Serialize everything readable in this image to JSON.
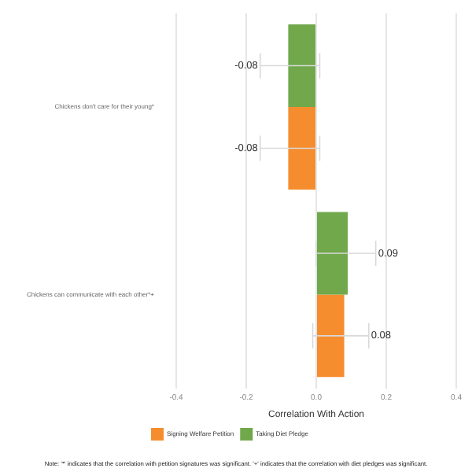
{
  "chart_data": {
    "type": "bar",
    "orientation": "horizontal",
    "categories": [
      "Chickens don't care for their young*",
      "Chickens can communicate with each other*+"
    ],
    "series": [
      {
        "name": "Signing Welfare Petition",
        "color": "#f58d2e",
        "values": [
          -0.08,
          0.08
        ],
        "errors": [
          [
            -0.16,
            0.01
          ],
          [
            -0.01,
            0.15
          ]
        ]
      },
      {
        "name": "Taking Diet Pledge",
        "color": "#70a84b",
        "values": [
          -0.08,
          0.09
        ],
        "errors": [
          [
            -0.16,
            0.01
          ],
          [
            0.0,
            0.17
          ]
        ]
      }
    ],
    "xlabel": "Correlation With Action",
    "xlim": [
      -0.4,
      0.4
    ],
    "xticks": [
      -0.4,
      -0.2,
      {
        "value": 0,
        "label": "0.0"
      },
      0.2,
      0.4
    ],
    "grid": "x",
    "legend": "bottom",
    "data_labels": true,
    "annotations": [
      "Note: '*' indicates that the correlation with petition signatures was significant. '+' indicates that the correlation with diet pledges was significant."
    ]
  }
}
